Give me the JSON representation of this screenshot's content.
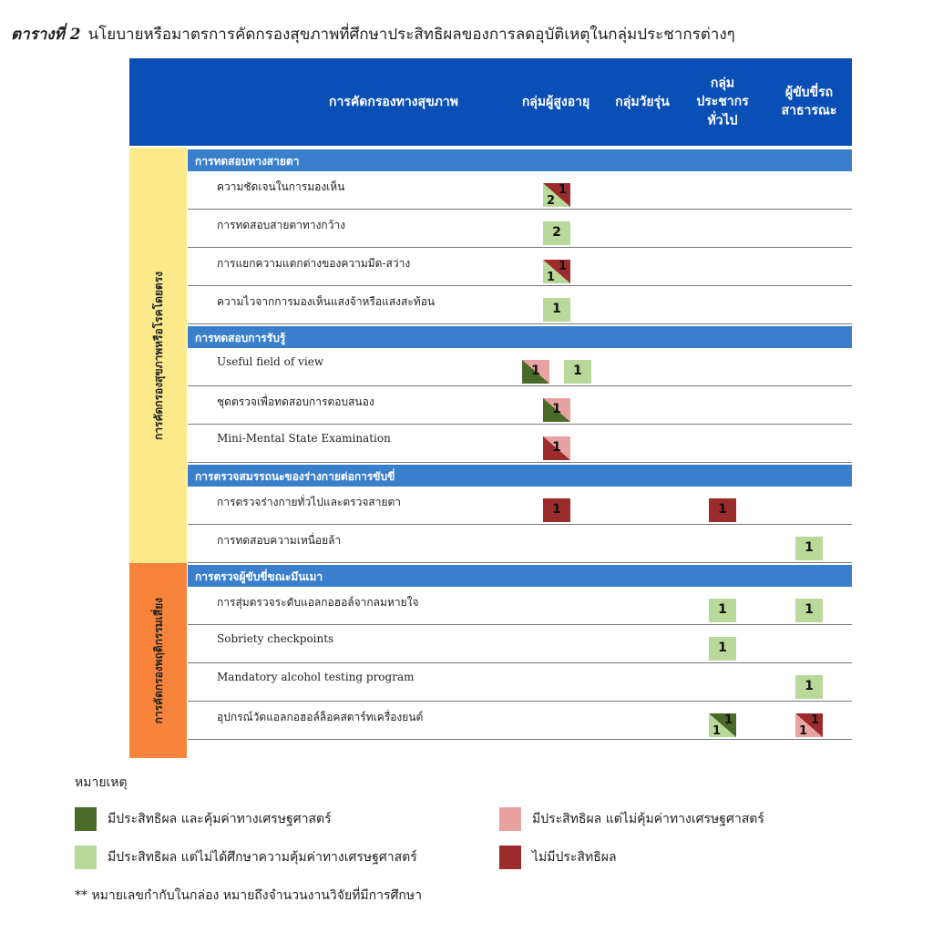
{
  "title": {
    "label": "ตารางที่ 2",
    "text": "นโยบายหรือมาตรการคัดกรองสุขภาพที่ศึกษาประสิทธิผลของการลดอุบัติเหตุในกลุ่มประชากรต่างๆ"
  },
  "colors": {
    "header": "#0a4fb5",
    "section": "#3a7fcc",
    "yellow": "#fbe98a",
    "orange": "#f7843a",
    "dg": "#4a6a2a",
    "lg": "#b9d99b",
    "pk": "#e8a2a2",
    "dr": "#9c2b2b"
  },
  "columns": [
    "การคัดกรองทางสุขภาพ",
    "กลุ่มผู้สูงอายุ",
    "กลุ่มวัยรุ่น",
    "กลุ่ม\nประชากร\nทั่วไป",
    "ผู้ขับขี่รถ\nสาธารณะ"
  ],
  "groups": [
    {
      "label": "การคัดกรองสุขภาพหรือโรคโดยตรง",
      "color": "yellow",
      "sections": [
        {
          "title": "การทดสอบทางสายตา",
          "rows": [
            {
              "label": "ความชัดเจนในการมองเห็น",
              "cells": {
                "elderly": [
                  {
                    "tr": "dr",
                    "bl": "lg",
                    "tr_num": "1",
                    "bl_num": "2"
                  }
                ]
              }
            },
            {
              "label": "การทดสอบสายตาทางกว้าง",
              "cells": {
                "elderly": [
                  {
                    "fill": "lg",
                    "num": "2"
                  }
                ]
              }
            },
            {
              "label": "การแยกความแตกต่างของความมืด-สว่าง",
              "cells": {
                "elderly": [
                  {
                    "tr": "dr",
                    "bl": "lg",
                    "tr_num": "1",
                    "bl_num": "1"
                  }
                ]
              }
            },
            {
              "label": "ความไวจากการมองเห็นแสงจ้าหรือแสงสะท้อน",
              "cells": {
                "elderly": [
                  {
                    "fill": "lg",
                    "num": "1"
                  }
                ]
              }
            }
          ]
        },
        {
          "title": "การทดสอบการรับรู้",
          "rows": [
            {
              "label": "Useful field of view",
              "cells": {
                "elderly": [
                  {
                    "tr": "pk",
                    "bl": "dg",
                    "num": "1"
                  },
                  {
                    "fill": "lg",
                    "num": "1"
                  }
                ]
              }
            },
            {
              "label": "ชุดตรวจเพื่อทดสอบการตอบสนอง",
              "cells": {
                "elderly": [
                  {
                    "tr": "pk",
                    "bl": "dg",
                    "num": "1"
                  }
                ]
              }
            },
            {
              "label": "Mini-Mental State Examination",
              "cells": {
                "elderly": [
                  {
                    "tr": "pk",
                    "bl": "dr",
                    "num": "1"
                  }
                ]
              }
            }
          ]
        },
        {
          "title": "การตรวจสมรรถนะของร่างกายต่อการขับขี่",
          "rows": [
            {
              "label": "การตรวจร่างกายทั่วไปและตรวจสายตา",
              "cells": {
                "elderly": [
                  {
                    "fill": "dr",
                    "num": "1"
                  }
                ],
                "general": [
                  {
                    "fill": "dr",
                    "num": "1"
                  }
                ]
              }
            },
            {
              "label": "การทดสอบความเหนื่อยล้า",
              "cells": {
                "drivers": [
                  {
                    "fill": "lg",
                    "num": "1"
                  }
                ]
              }
            }
          ]
        }
      ]
    },
    {
      "label": "การคัดกรองพฤติกรรมเสี่ยง",
      "color": "orange",
      "sections": [
        {
          "title": "การตรวจผู้ขับขี่ขณะมึนเมา",
          "rows": [
            {
              "label": "การสุ่มตรวจระดับแอลกอฮอล์จากลมหายใจ",
              "cells": {
                "general": [
                  {
                    "fill": "lg",
                    "num": "1"
                  }
                ],
                "drivers": [
                  {
                    "fill": "lg",
                    "num": "1"
                  }
                ]
              }
            },
            {
              "label": "Sobriety checkpoints",
              "cells": {
                "general": [
                  {
                    "fill": "lg",
                    "num": "1"
                  }
                ]
              }
            },
            {
              "label": "Mandatory alcohol testing program",
              "cells": {
                "drivers": [
                  {
                    "fill": "lg",
                    "num": "1"
                  }
                ]
              }
            },
            {
              "label": "อุปกรณ์วัดแอลกอฮอล์ล็อคสตาร์ทเครื่องยนต์",
              "cells": {
                "general": [
                  {
                    "tr": "dg",
                    "bl": "lg",
                    "tr_num": "1",
                    "bl_num": "1"
                  }
                ],
                "drivers": [
                  {
                    "tr": "dr",
                    "bl": "pk",
                    "tr_num": "1",
                    "bl_num": "1"
                  }
                ]
              }
            }
          ]
        }
      ]
    }
  ],
  "legend": {
    "title": "หมายเหตุ",
    "items": [
      {
        "color": "dg",
        "label": "มีประสิทธิผล และคุ้มค่าทางเศรษฐศาสตร์"
      },
      {
        "color": "pk",
        "label": "มีประสิทธิผล แต่ไม่คุ้มค่าทางเศรษฐศาสตร์"
      },
      {
        "color": "lg",
        "label": "มีประสิทธิผล แต่ไม่ได้ศึกษาความคุ้มค่าทางเศรษฐศาสตร์"
      },
      {
        "color": "dr",
        "label": "ไม่มีประสิทธิผล"
      }
    ],
    "note": "** หมายเลขกำกับในกล่อง หมายถึงจำนวนงานวิจัยที่มีการศึกษา"
  }
}
